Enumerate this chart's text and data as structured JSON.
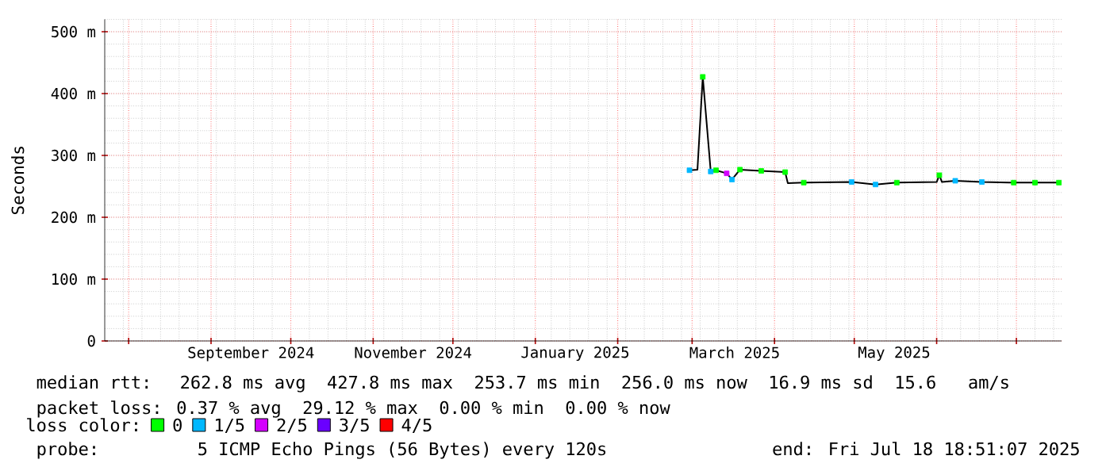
{
  "chart_data": {
    "type": "line",
    "ylabel": "Seconds",
    "x": [
      "2025-02-28",
      "2025-03-03",
      "2025-03-05",
      "2025-03-08",
      "2025-03-10",
      "2025-03-14",
      "2025-03-16",
      "2025-03-19",
      "2025-03-27",
      "2025-04-05",
      "2025-04-06",
      "2025-04-12",
      "2025-04-30",
      "2025-05-09",
      "2025-05-17",
      "2025-06-01",
      "2025-06-02",
      "2025-06-03",
      "2025-06-08",
      "2025-06-18",
      "2025-06-30",
      "2025-07-08",
      "2025-07-17"
    ],
    "series": [
      {
        "color": "#000000",
        "values": [
          276,
          277,
          427,
          274,
          276,
          271,
          261,
          277,
          275,
          273,
          255,
          256,
          257,
          253,
          256,
          257,
          268,
          257,
          259,
          257,
          256,
          256,
          256
        ]
      },
      {
        "name": "0",
        "type": "scatter",
        "marker": "square",
        "color": "#00ff00",
        "values": [
          null,
          null,
          427,
          null,
          276,
          null,
          null,
          277,
          275,
          273,
          null,
          256,
          null,
          null,
          256,
          null,
          268,
          null,
          null,
          null,
          256,
          256,
          256
        ]
      },
      {
        "name": "1/5",
        "type": "scatter",
        "marker": "square",
        "color": "#00b8ff",
        "values": [
          276,
          null,
          null,
          274,
          null,
          null,
          261,
          null,
          null,
          null,
          null,
          null,
          257,
          253,
          null,
          null,
          null,
          null,
          259,
          257,
          null,
          null,
          null
        ]
      },
      {
        "name": "2/5",
        "type": "scatter",
        "marker": "square",
        "color": "#d400ff",
        "values": [
          null,
          null,
          null,
          null,
          null,
          271,
          null,
          null,
          null,
          null,
          null,
          null,
          null,
          null,
          null,
          null,
          null,
          null,
          null,
          null,
          null,
          null,
          null
        ]
      },
      {
        "name": "3/5",
        "type": "scatter",
        "marker": "square",
        "color": "#6a00ff",
        "values": [
          null,
          null,
          null,
          null,
          null,
          null,
          null,
          null,
          null,
          null,
          null,
          null,
          null,
          null,
          null,
          null,
          null,
          null,
          null,
          null,
          null,
          null,
          null
        ]
      },
      {
        "name": "4/5",
        "type": "scatter",
        "marker": "square",
        "color": "#ff0000",
        "values": [
          null,
          null,
          null,
          null,
          null,
          null,
          null,
          null,
          null,
          null,
          null,
          null,
          null,
          null,
          null,
          null,
          null,
          null,
          null,
          null,
          null,
          null,
          null
        ]
      }
    ],
    "legend": "bottom",
    "legend_title": "loss color:",
    "grid": true,
    "xlim": [
      "2024-07-23",
      "2025-07-18"
    ],
    "xticks": [
      {
        "value": "2024-08-01",
        "label": null
      },
      {
        "value": "2024-09-01",
        "label": null
      },
      {
        "value": "2024-10-01",
        "label": null
      },
      {
        "value": "2024-11-01",
        "label": null
      },
      {
        "value": "2024-12-01",
        "label": null
      },
      {
        "value": "2025-01-01",
        "label": null
      },
      {
        "value": "2025-02-01",
        "label": null
      },
      {
        "value": "2025-03-01",
        "label": null
      },
      {
        "value": "2025-04-01",
        "label": null
      },
      {
        "value": "2025-05-01",
        "label": null
      },
      {
        "value": "2025-06-01",
        "label": null
      },
      {
        "value": "2025-07-01",
        "label": null
      },
      {
        "value": "2024-09-16",
        "label": "September 2024"
      },
      {
        "value": "2024-11-16",
        "label": "November 2024"
      },
      {
        "value": "2025-01-16",
        "label": "January 2025"
      },
      {
        "value": "2025-03-17",
        "label": "March 2025"
      },
      {
        "value": "2025-05-16",
        "label": "May 2025"
      }
    ],
    "ylim": [
      0,
      520
    ],
    "yticks": [
      0,
      {
        "value": 100,
        "label": "100 m"
      },
      {
        "value": 200,
        "label": "200 m"
      },
      {
        "value": 300,
        "label": "300 m"
      },
      {
        "value": 400,
        "label": "400 m"
      },
      {
        "value": 500,
        "label": "500 m"
      }
    ],
    "annotations": [
      "median rtt:  262.8 ms avg  427.8 ms max  253.7 ms min  256.0 ms now  16.9 ms sd  15.6   am/s",
      "packet loss: 0.37 % avg  29.12 % max  0.00 % min  0.00 % now",
      "probe:       5 ICMP Echo Pings (56 Bytes) every 120s",
      "end: Fri Jul 18 18:51:07 2025"
    ]
  }
}
